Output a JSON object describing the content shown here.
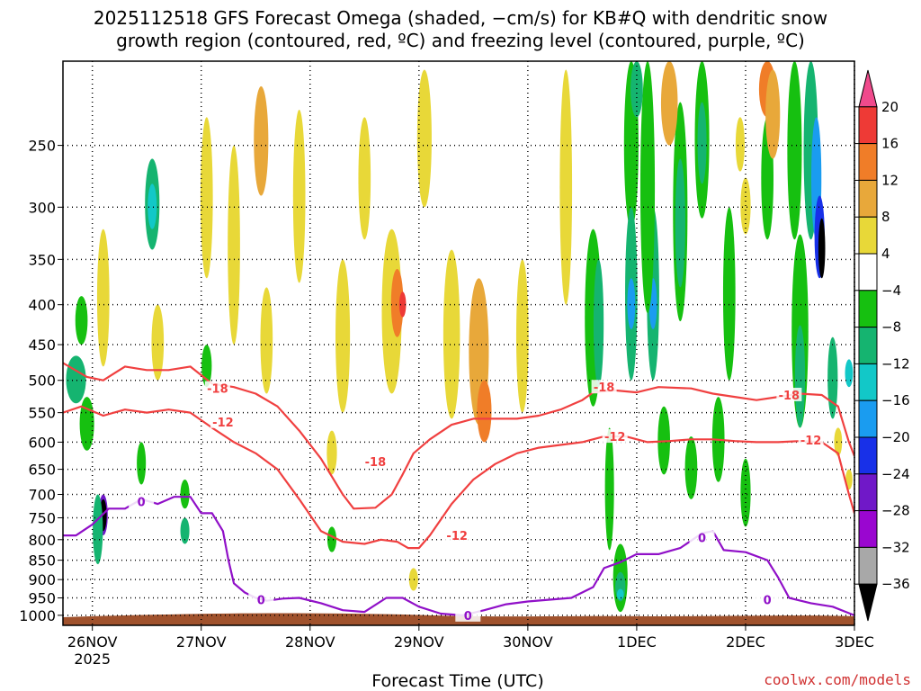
{
  "title_line1": "2025112518 GFS Forecast Omega (shaded, −cm/s) for KB#Q with dendritic snow",
  "title_line2": "growth region (contoured, red, ºC) and freezing level (contoured, purple, ºC)",
  "credit": "coolwx.com/models",
  "chart_data": {
    "type": "heatmap",
    "xlabel": "Forecast Time (UTC)",
    "ylabel": "",
    "x_ticks": [
      "26NOV",
      "27NOV",
      "28NOV",
      "29NOV",
      "30NOV",
      "1DEC",
      "2DEC",
      "3DEC"
    ],
    "x_year_label": "2025",
    "y_ticks": [
      250,
      300,
      350,
      400,
      450,
      500,
      550,
      600,
      650,
      700,
      750,
      800,
      850,
      900,
      950,
      1000
    ],
    "y_scale": "log-pressure",
    "ylim": [
      1030,
      195
    ],
    "xlim": [
      -0.27,
      7.0
    ],
    "grid": true,
    "colorbar": {
      "levels": [
        "20",
        "16",
        "12",
        "8",
        "4",
        "−4",
        "−8",
        "−12",
        "−16",
        "−20",
        "−24",
        "−28",
        "−32",
        "−36"
      ],
      "colors": [
        "#f04a8c",
        "#ee3a36",
        "#f07d28",
        "#e8a83a",
        "#e8d838",
        "#ffffff",
        "#16c010",
        "#15b470",
        "#12c8c8",
        "#1a9cf0",
        "#1830e8",
        "#7018c8",
        "#9a06d0",
        "#a8a8a8",
        "#000000"
      ]
    },
    "contours": [
      {
        "name": "-18",
        "color": "#f04040",
        "x": [
          -0.27,
          -0.05,
          0.1,
          0.3,
          0.5,
          0.7,
          0.9,
          1.1,
          1.3,
          1.5,
          1.7,
          1.9,
          2.1,
          2.3,
          2.4,
          2.6,
          2.75,
          2.85,
          2.95,
          3.1,
          3.3,
          3.5,
          3.7,
          3.9,
          4.1,
          4.3,
          4.5,
          4.6,
          4.8,
          5.0,
          5.2,
          5.5,
          5.7,
          5.9,
          6.1,
          6.3,
          6.5,
          6.7,
          6.85,
          6.95,
          7.0
        ],
        "p": [
          475,
          495,
          500,
          480,
          485,
          485,
          480,
          505,
          510,
          520,
          540,
          580,
          630,
          700,
          730,
          728,
          700,
          660,
          620,
          595,
          570,
          560,
          560,
          560,
          555,
          545,
          530,
          518,
          515,
          518,
          510,
          512,
          520,
          525,
          530,
          525,
          520,
          522,
          540,
          600,
          625
        ],
        "labels": [
          {
            "x": 1.15,
            "p": 512
          },
          {
            "x": 2.6,
            "p": 635
          },
          {
            "x": 4.7,
            "p": 510
          },
          {
            "x": 6.4,
            "p": 522
          }
        ]
      },
      {
        "name": "-12",
        "color": "#f04040",
        "x": [
          -0.27,
          -0.1,
          0.1,
          0.3,
          0.5,
          0.7,
          0.9,
          1.1,
          1.3,
          1.5,
          1.7,
          1.9,
          2.1,
          2.3,
          2.5,
          2.65,
          2.8,
          2.9,
          3.0,
          3.1,
          3.3,
          3.5,
          3.7,
          3.9,
          4.1,
          4.3,
          4.5,
          4.7,
          4.9,
          5.1,
          5.3,
          5.5,
          5.7,
          5.9,
          6.1,
          6.3,
          6.5,
          6.7,
          6.85,
          6.95,
          7.0
        ],
        "p": [
          550,
          540,
          555,
          545,
          550,
          545,
          550,
          575,
          600,
          620,
          650,
          710,
          780,
          805,
          810,
          800,
          805,
          820,
          820,
          790,
          720,
          670,
          640,
          620,
          610,
          605,
          600,
          590,
          590,
          600,
          598,
          595,
          595,
          598,
          600,
          600,
          598,
          600,
          620,
          700,
          740
        ],
        "labels": [
          {
            "x": 1.2,
            "p": 565
          },
          {
            "x": 3.35,
            "p": 790
          },
          {
            "x": 4.8,
            "p": 590
          },
          {
            "x": 6.6,
            "p": 596
          }
        ]
      },
      {
        "name": "0",
        "color": "#9010c8",
        "x": [
          -0.27,
          -0.15,
          0,
          0.15,
          0.3,
          0.45,
          0.6,
          0.75,
          0.9,
          1.0,
          1.1,
          1.2,
          1.25,
          1.3,
          1.4,
          1.5,
          1.6,
          1.75,
          1.9,
          2.1,
          2.3,
          2.5,
          2.7,
          2.85,
          3.0,
          3.2,
          3.4,
          3.6,
          3.8,
          4.0,
          4.2,
          4.4,
          4.6,
          4.7,
          4.85,
          5.0,
          5.2,
          5.4,
          5.6,
          5.7,
          5.8,
          6.0,
          6.2,
          6.3,
          6.4,
          6.6,
          6.8,
          7.0
        ],
        "p": [
          790,
          790,
          765,
          730,
          730,
          710,
          720,
          705,
          705,
          740,
          740,
          780,
          850,
          910,
          935,
          950,
          958,
          952,
          950,
          965,
          985,
          990,
          950,
          950,
          975,
          995,
          1000,
          985,
          968,
          960,
          955,
          950,
          920,
          870,
          855,
          835,
          835,
          820,
          785,
          780,
          825,
          830,
          850,
          895,
          950,
          965,
          975,
          1000
        ],
        "labels": [
          {
            "x": 0.45,
            "p": 715
          },
          {
            "x": 1.55,
            "p": 955
          },
          {
            "x": 3.45,
            "p": 1000
          },
          {
            "x": 5.6,
            "p": 795
          },
          {
            "x": 6.2,
            "p": 955
          }
        ]
      }
    ],
    "omega_cells": [
      {
        "x": 0.1,
        "p": 745,
        "w": 0.05,
        "h": 90,
        "v": -28
      },
      {
        "x": 0.1,
        "p": 745,
        "w": 0.03,
        "h": 70,
        "v": -36
      },
      {
        "x": -0.15,
        "p": 500,
        "w": 0.15,
        "h": 70,
        "v": -12
      },
      {
        "x": -0.05,
        "p": 570,
        "w": 0.1,
        "h": 90,
        "v": -8
      },
      {
        "x": -0.1,
        "p": 420,
        "w": 0.08,
        "h": 60,
        "v": -8
      },
      {
        "x": 0.05,
        "p": 780,
        "w": 0.06,
        "h": 160,
        "v": -12
      },
      {
        "x": 0.55,
        "p": 300,
        "w": 0.1,
        "h": 80,
        "v": -12
      },
      {
        "x": 0.55,
        "p": 300,
        "w": 0.05,
        "h": 40,
        "v": -16
      },
      {
        "x": 0.85,
        "p": 780,
        "w": 0.05,
        "h": 60,
        "v": -12
      },
      {
        "x": 0.85,
        "p": 700,
        "w": 0.05,
        "h": 60,
        "v": -8
      },
      {
        "x": 0.1,
        "p": 400,
        "w": 0.08,
        "h": 160,
        "v": 4
      },
      {
        "x": 0.6,
        "p": 450,
        "w": 0.08,
        "h": 100,
        "v": 4
      },
      {
        "x": 1.05,
        "p": 300,
        "w": 0.08,
        "h": 140,
        "v": 4
      },
      {
        "x": 1.3,
        "p": 350,
        "w": 0.08,
        "h": 200,
        "v": 4
      },
      {
        "x": 1.6,
        "p": 450,
        "w": 0.08,
        "h": 140,
        "v": 4
      },
      {
        "x": 1.9,
        "p": 300,
        "w": 0.08,
        "h": 150,
        "v": 4
      },
      {
        "x": 2.3,
        "p": 450,
        "w": 0.1,
        "h": 200,
        "v": 4
      },
      {
        "x": 2.75,
        "p": 420,
        "w": 0.15,
        "h": 200,
        "v": 4
      },
      {
        "x": 2.8,
        "p": 400,
        "w": 0.08,
        "h": 80,
        "v": 12
      },
      {
        "x": 2.85,
        "p": 400,
        "w": 0.03,
        "h": 30,
        "v": 16
      },
      {
        "x": 3.3,
        "p": 450,
        "w": 0.12,
        "h": 220,
        "v": 4
      },
      {
        "x": 3.55,
        "p": 470,
        "w": 0.15,
        "h": 200,
        "v": 8
      },
      {
        "x": 3.6,
        "p": 550,
        "w": 0.1,
        "h": 100,
        "v": 12
      },
      {
        "x": 3.95,
        "p": 450,
        "w": 0.08,
        "h": 200,
        "v": 4
      },
      {
        "x": 4.35,
        "p": 300,
        "w": 0.08,
        "h": 200,
        "v": 4
      },
      {
        "x": 3.05,
        "p": 250,
        "w": 0.1,
        "h": 100,
        "v": 4
      },
      {
        "x": 2.5,
        "p": 280,
        "w": 0.08,
        "h": 100,
        "v": 4
      },
      {
        "x": 1.55,
        "p": 250,
        "w": 0.1,
        "h": 80,
        "v": 8
      },
      {
        "x": 2.2,
        "p": 620,
        "w": 0.06,
        "h": 80,
        "v": 4
      },
      {
        "x": 1.05,
        "p": 480,
        "w": 0.06,
        "h": 60,
        "v": -8
      },
      {
        "x": 0.45,
        "p": 640,
        "w": 0.05,
        "h": 80,
        "v": -8
      },
      {
        "x": 2.2,
        "p": 800,
        "w": 0.05,
        "h": 60,
        "v": -8
      },
      {
        "x": 2.95,
        "p": 900,
        "w": 0.05,
        "h": 60,
        "v": 4
      },
      {
        "x": 4.6,
        "p": 430,
        "w": 0.12,
        "h": 220,
        "v": -8
      },
      {
        "x": 4.65,
        "p": 430,
        "w": 0.06,
        "h": 160,
        "v": -12
      },
      {
        "x": 4.75,
        "p": 700,
        "w": 0.05,
        "h": 250,
        "v": -8
      },
      {
        "x": 4.95,
        "p": 250,
        "w": 0.1,
        "h": 140,
        "v": -8
      },
      {
        "x": 4.95,
        "p": 400,
        "w": 0.08,
        "h": 200,
        "v": -12
      },
      {
        "x": 4.95,
        "p": 400,
        "w": 0.04,
        "h": 60,
        "v": -20
      },
      {
        "x": 5.15,
        "p": 400,
        "w": 0.08,
        "h": 200,
        "v": -12
      },
      {
        "x": 5.15,
        "p": 400,
        "w": 0.04,
        "h": 60,
        "v": -20
      },
      {
        "x": 5.1,
        "p": 300,
        "w": 0.1,
        "h": 220,
        "v": -8
      },
      {
        "x": 4.85,
        "p": 900,
        "w": 0.1,
        "h": 180,
        "v": -8
      },
      {
        "x": 4.85,
        "p": 920,
        "w": 0.06,
        "h": 80,
        "v": -12
      },
      {
        "x": 4.85,
        "p": 940,
        "w": 0.03,
        "h": 30,
        "v": -16
      },
      {
        "x": 5.0,
        "p": 200,
        "w": 0.08,
        "h": 60,
        "v": -12
      },
      {
        "x": 5.4,
        "p": 320,
        "w": 0.1,
        "h": 200,
        "v": -8
      },
      {
        "x": 5.4,
        "p": 320,
        "w": 0.06,
        "h": 120,
        "v": -12
      },
      {
        "x": 5.6,
        "p": 250,
        "w": 0.1,
        "h": 120,
        "v": -8
      },
      {
        "x": 5.6,
        "p": 250,
        "w": 0.05,
        "h": 60,
        "v": -12
      },
      {
        "x": 5.85,
        "p": 400,
        "w": 0.08,
        "h": 200,
        "v": -8
      },
      {
        "x": 5.75,
        "p": 600,
        "w": 0.08,
        "h": 150,
        "v": -8
      },
      {
        "x": 5.5,
        "p": 650,
        "w": 0.08,
        "h": 120,
        "v": -8
      },
      {
        "x": 5.25,
        "p": 600,
        "w": 0.08,
        "h": 120,
        "v": -8
      },
      {
        "x": 6.0,
        "p": 700,
        "w": 0.06,
        "h": 140,
        "v": -8
      },
      {
        "x": 6.2,
        "p": 280,
        "w": 0.08,
        "h": 100,
        "v": -8
      },
      {
        "x": 6.45,
        "p": 250,
        "w": 0.1,
        "h": 160,
        "v": -8
      },
      {
        "x": 6.5,
        "p": 450,
        "w": 0.12,
        "h": 250,
        "v": -8
      },
      {
        "x": 6.5,
        "p": 500,
        "w": 0.06,
        "h": 150,
        "v": -12
      },
      {
        "x": 6.6,
        "p": 250,
        "w": 0.1,
        "h": 160,
        "v": -12
      },
      {
        "x": 6.65,
        "p": 280,
        "w": 0.06,
        "h": 100,
        "v": -20
      },
      {
        "x": 6.68,
        "p": 330,
        "w": 0.06,
        "h": 80,
        "v": -24
      },
      {
        "x": 6.7,
        "p": 340,
        "w": 0.03,
        "h": 60,
        "v": -36
      },
      {
        "x": 6.8,
        "p": 500,
        "w": 0.06,
        "h": 120,
        "v": -12
      },
      {
        "x": 6.95,
        "p": 490,
        "w": 0.04,
        "h": 40,
        "v": -16
      },
      {
        "x": 5.3,
        "p": 220,
        "w": 0.12,
        "h": 60,
        "v": 8
      },
      {
        "x": 6.2,
        "p": 210,
        "w": 0.12,
        "h": 40,
        "v": 12
      },
      {
        "x": 6.25,
        "p": 230,
        "w": 0.1,
        "h": 60,
        "v": 8
      },
      {
        "x": 6.0,
        "p": 300,
        "w": 0.06,
        "h": 50,
        "v": 4
      },
      {
        "x": 5.95,
        "p": 250,
        "w": 0.05,
        "h": 40,
        "v": 4
      },
      {
        "x": 6.85,
        "p": 600,
        "w": 0.04,
        "h": 50,
        "v": 4
      },
      {
        "x": 6.95,
        "p": 670,
        "w": 0.03,
        "h": 40,
        "v": 4
      }
    ]
  }
}
